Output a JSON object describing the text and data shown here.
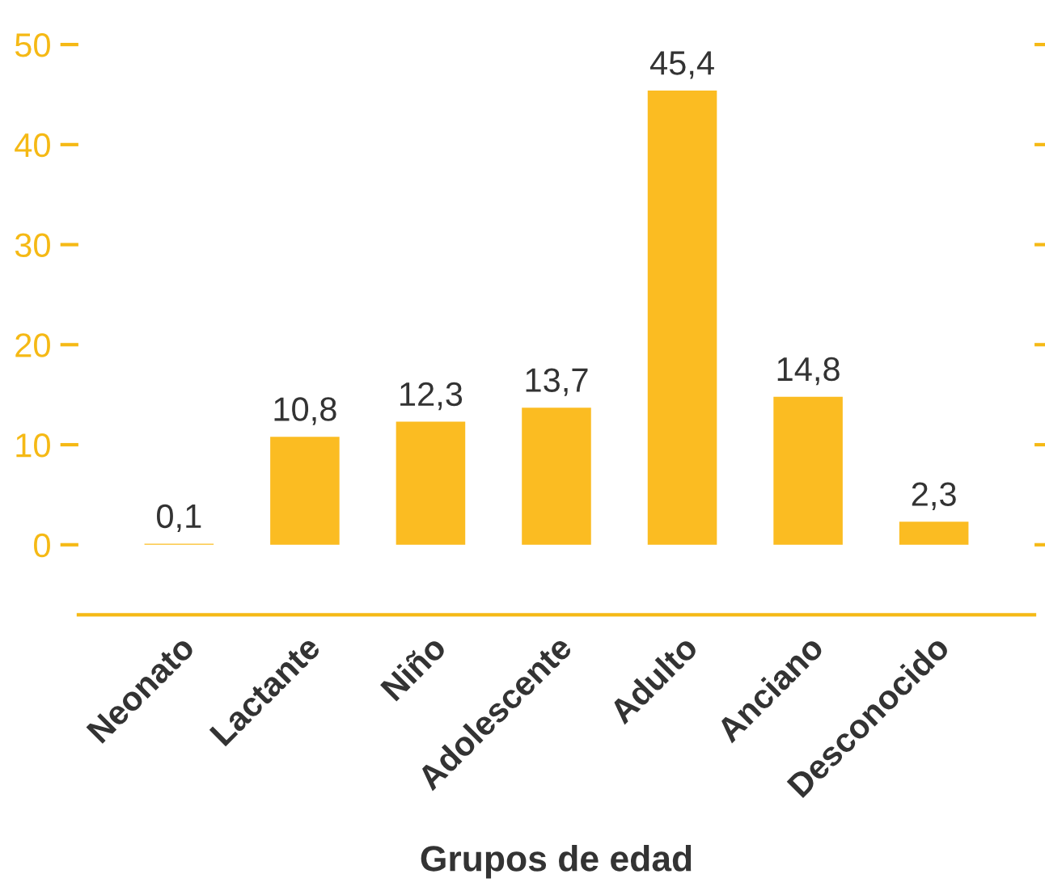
{
  "chart_data": {
    "type": "bar",
    "xlabel": "Grupos de edad",
    "categories": [
      "Neonato",
      "Lactante",
      "Niño",
      "Adolescente",
      "Adulto",
      "Anciano",
      "Desconocido"
    ],
    "values": [
      0.1,
      10.8,
      12.3,
      13.7,
      45.4,
      14.8,
      2.3
    ],
    "color": "#fbbc22",
    "data_labels": true,
    "value_labels": [
      "0,1",
      "10,8",
      "12,3",
      "13,7",
      "45,4",
      "14,8",
      "2,3"
    ],
    "ylim": [
      -7,
      50
    ],
    "yticks": [
      0,
      10,
      20,
      30,
      40,
      50
    ],
    "grid": false,
    "legend": false
  }
}
